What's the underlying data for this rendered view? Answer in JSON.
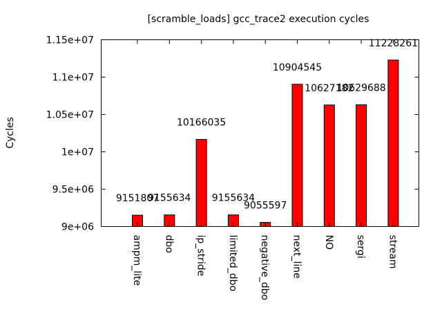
{
  "chart_data": {
    "type": "bar",
    "title": "[scramble_loads] gcc_trace2 execution cycles",
    "xlabel": "",
    "ylabel": "Cycles",
    "ylim": [
      9000000,
      11500000
    ],
    "yticks": [
      {
        "value": 9000000,
        "label": "9e+06"
      },
      {
        "value": 9500000,
        "label": "9.5e+06"
      },
      {
        "value": 10000000,
        "label": "1e+07"
      },
      {
        "value": 10500000,
        "label": "1.05e+07"
      },
      {
        "value": 11000000,
        "label": "1.1e+07"
      },
      {
        "value": 11500000,
        "label": "1.15e+07"
      }
    ],
    "categories": [
      "ampm_lite",
      "dbo",
      "ip_stride",
      "limited_dbo",
      "negative_dbo",
      "next_line",
      "NO",
      "sergi",
      "stream"
    ],
    "values": [
      9151807,
      9155634,
      10166035,
      9155634,
      9055597,
      10904545,
      10627182,
      10629688,
      11228261
    ],
    "data_labels": [
      "9151807",
      "9155634",
      "10166035",
      "9155634",
      "9055597",
      "10904545",
      "10627182",
      "10629688",
      "11228261"
    ],
    "bar_color": "#ff0000",
    "grid": false,
    "legend": "none"
  }
}
